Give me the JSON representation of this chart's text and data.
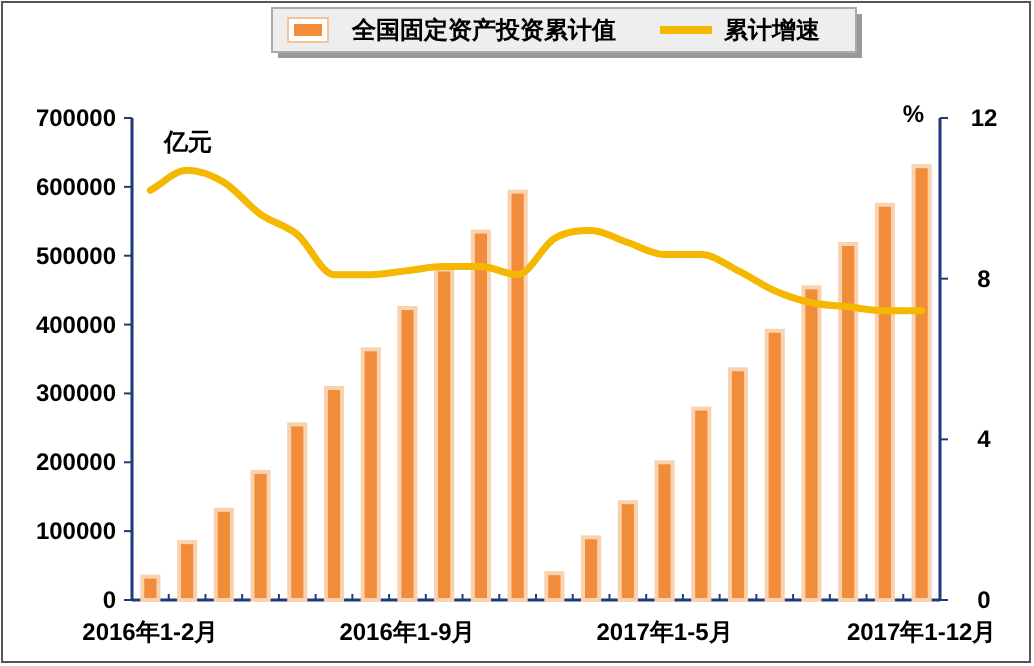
{
  "chart_data": {
    "type": "bar",
    "categories": [
      "2016年1-2月",
      null,
      null,
      null,
      null,
      null,
      null,
      "2016年1-9月",
      null,
      null,
      null,
      null,
      null,
      null,
      "2017年1-5月",
      null,
      null,
      null,
      null,
      null,
      null,
      "2017年1-12月"
    ],
    "series": [
      {
        "name": "全国固定资产投资累计值",
        "color": "#f08c3a",
        "values": [
          34000,
          84000,
          131000,
          186000,
          255000,
          308000,
          364000,
          424000,
          480000,
          535000,
          593000,
          39000,
          91000,
          142000,
          200000,
          278000,
          335000,
          391000,
          454000,
          517000,
          574000,
          630000
        ]
      },
      {
        "name": "累计增速",
        "type": "line",
        "axis": "y2",
        "color": "#f5b800",
        "values": [
          10.2,
          10.7,
          10.4,
          9.6,
          9.1,
          8.1,
          8.1,
          8.2,
          8.3,
          8.3,
          8.1,
          9.0,
          9.2,
          8.9,
          8.6,
          8.6,
          8.2,
          7.7,
          7.4,
          7.3,
          7.2,
          7.2
        ]
      }
    ],
    "ylabel": "亿元",
    "y2label": "%",
    "ylim": [
      0,
      700000
    ],
    "yticks": [
      0,
      100000,
      200000,
      300000,
      400000,
      500000,
      600000,
      700000
    ],
    "y2lim": [
      0,
      12
    ],
    "y2ticks": [
      0,
      4,
      8,
      12
    ],
    "legend": "top",
    "grid": false,
    "marker": "none",
    "line_style": "solid"
  }
}
